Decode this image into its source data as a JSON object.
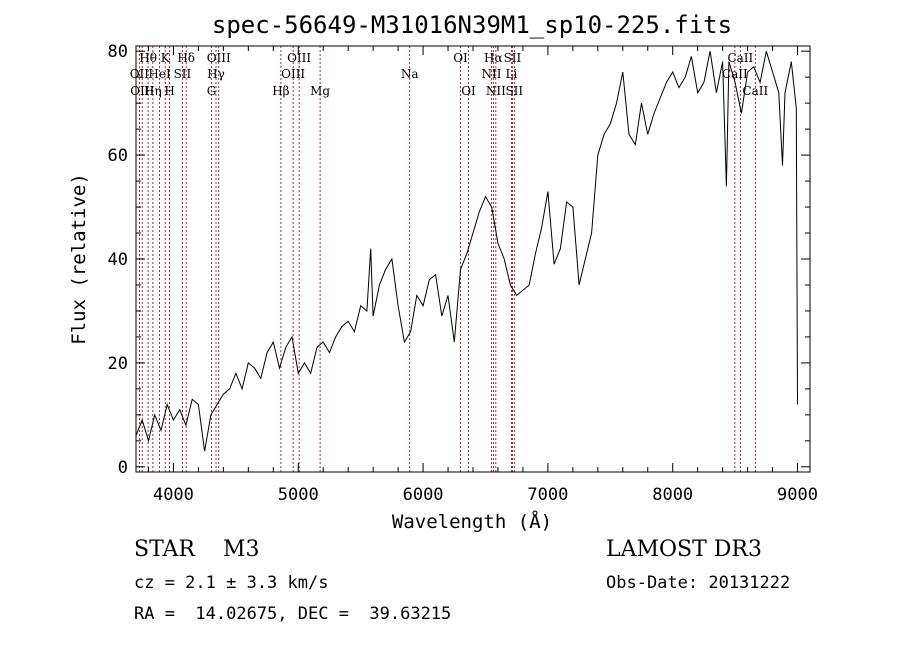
{
  "chart_data": {
    "type": "line",
    "title": "spec-56649-M31016N39M1_sp10-225.fits",
    "xlabel": "Wavelength (Å)",
    "ylabel": "Flux (relative)",
    "xlim": [
      3700,
      9100
    ],
    "ylim": [
      -1,
      81
    ],
    "xticks": [
      4000,
      5000,
      6000,
      7000,
      8000,
      9000
    ],
    "yticks": [
      0,
      20,
      40,
      60,
      80
    ],
    "grid": false,
    "series": [
      {
        "name": "flux",
        "color": "#000000",
        "x": [
          3700,
          3750,
          3800,
          3850,
          3900,
          3950,
          4000,
          4050,
          4100,
          4150,
          4200,
          4250,
          4300,
          4350,
          4400,
          4450,
          4500,
          4550,
          4600,
          4650,
          4700,
          4750,
          4800,
          4850,
          4900,
          4950,
          5000,
          5050,
          5100,
          5150,
          5200,
          5250,
          5300,
          5350,
          5400,
          5450,
          5500,
          5550,
          5580,
          5600,
          5650,
          5700,
          5750,
          5800,
          5850,
          5900,
          5950,
          6000,
          6050,
          6100,
          6150,
          6200,
          6250,
          6300,
          6350,
          6400,
          6450,
          6500,
          6550,
          6600,
          6650,
          6700,
          6750,
          6800,
          6850,
          6900,
          6950,
          7000,
          7050,
          7100,
          7150,
          7200,
          7250,
          7300,
          7350,
          7400,
          7450,
          7500,
          7550,
          7600,
          7650,
          7700,
          7750,
          7800,
          7850,
          7900,
          7950,
          8000,
          8050,
          8100,
          8150,
          8200,
          8250,
          8300,
          8350,
          8400,
          8430,
          8450,
          8500,
          8550,
          8600,
          8650,
          8700,
          8750,
          8800,
          8850,
          8880,
          8900,
          8950,
          8990,
          9000
        ],
        "y": [
          6,
          9,
          5,
          10,
          7,
          12,
          9,
          11,
          8,
          13,
          12,
          3,
          10,
          12,
          14,
          15,
          18,
          15,
          20,
          19,
          17,
          22,
          24,
          19,
          23,
          25,
          18,
          20,
          18,
          23,
          24,
          22,
          25,
          27,
          28,
          26,
          31,
          30,
          42,
          29,
          35,
          38,
          40,
          31,
          24,
          26,
          33,
          31,
          36,
          37,
          29,
          33,
          24,
          38,
          41,
          45,
          49,
          52,
          50,
          43,
          40,
          35,
          33,
          34,
          35,
          41,
          46,
          53,
          39,
          42,
          51,
          50,
          35,
          40,
          45,
          60,
          64,
          66,
          70,
          76,
          64,
          62,
          70,
          64,
          68,
          71,
          74,
          76,
          73,
          75,
          79,
          72,
          74,
          80,
          72,
          78,
          54,
          78,
          74,
          68,
          76,
          77,
          74,
          80,
          76,
          72,
          58,
          72,
          78,
          69,
          12
        ]
      }
    ],
    "lines": [
      {
        "label": "Hθ",
        "x": 3797,
        "row": 1,
        "color": "#8b0000"
      },
      {
        "label": "OII",
        "x": 3727,
        "row": 2,
        "color": "#8b0000"
      },
      {
        "label": "OIII",
        "x": 3750,
        "row": 3,
        "color": "#8b0000"
      },
      {
        "label": "K",
        "x": 3934,
        "row": 1,
        "color": "#8b0000"
      },
      {
        "label": "HeI",
        "x": 3889,
        "row": 2,
        "color": "#8b0000"
      },
      {
        "label": "Hη",
        "x": 3835,
        "row": 3,
        "color": "#8b0000"
      },
      {
        "label": "Hδ",
        "x": 4102,
        "row": 1,
        "color": "#8b0000"
      },
      {
        "label": "SII",
        "x": 4072,
        "row": 2,
        "color": "#8b0000"
      },
      {
        "label": "H",
        "x": 3969,
        "row": 3,
        "color": "#8b0000"
      },
      {
        "label": "OIII",
        "x": 4363,
        "row": 1,
        "color": "#8b0000"
      },
      {
        "label": "Hγ",
        "x": 4341,
        "row": 2,
        "color": "#8b0000"
      },
      {
        "label": "G",
        "x": 4305,
        "row": 3,
        "color": "#8b0000"
      },
      {
        "label": "OIII",
        "x": 5007,
        "row": 1,
        "color": "#8b0000"
      },
      {
        "label": "OIII",
        "x": 4959,
        "row": 2,
        "color": "#8b0000"
      },
      {
        "label": "Hβ",
        "x": 4861,
        "row": 3,
        "color": "#8b0000"
      },
      {
        "label": "Mg",
        "x": 5175,
        "row": 3,
        "color": "#8b0000"
      },
      {
        "label": "Na",
        "x": 5893,
        "row": 2,
        "color": "#8b0000"
      },
      {
        "label": "OI",
        "x": 6300,
        "row": 1,
        "color": "#8b0000"
      },
      {
        "label": "OI",
        "x": 6364,
        "row": 3,
        "color": "#8b0000"
      },
      {
        "label": "Hα",
        "x": 6563,
        "row": 1,
        "color": "#8b0000"
      },
      {
        "label": "SII",
        "x": 6716,
        "row": 1,
        "color": "#8b0000"
      },
      {
        "label": "NII",
        "x": 6548,
        "row": 2,
        "color": "#8b0000"
      },
      {
        "label": "Li",
        "x": 6708,
        "row": 2,
        "color": "#8b0000"
      },
      {
        "label": "NII",
        "x": 6583,
        "row": 3,
        "color": "#8b0000"
      },
      {
        "label": "SII",
        "x": 6731,
        "row": 3,
        "color": "#8b0000"
      },
      {
        "label": "CaII",
        "x": 8542,
        "row": 1,
        "color": "#8b0000"
      },
      {
        "label": "CaII",
        "x": 8498,
        "row": 2,
        "color": "#8b0000"
      },
      {
        "label": "CaII",
        "x": 8662,
        "row": 3,
        "color": "#8b0000"
      }
    ]
  },
  "footer": {
    "object_line": "STAR    M3",
    "survey": "LAMOST DR3",
    "cz": "cz = 2.1 ± 3.3 km/s",
    "obs_date": "Obs-Date: 20131222",
    "radec": "RA =  14.02675, DEC =  39.63215"
  }
}
